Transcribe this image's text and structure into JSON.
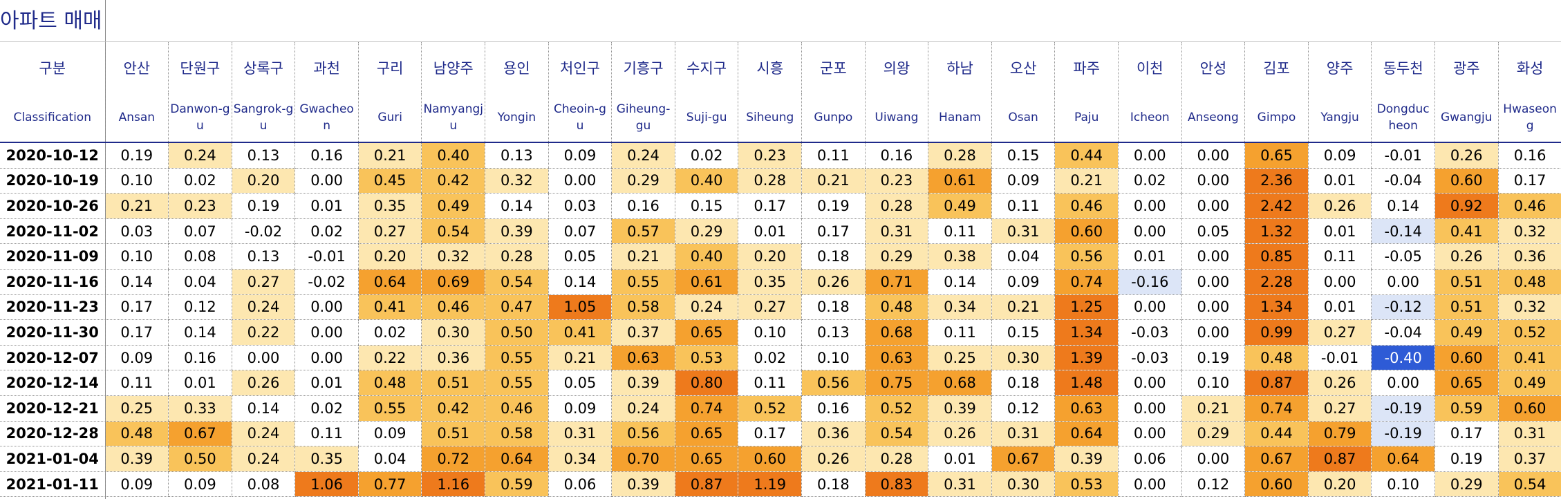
{
  "title": "아파트 매매",
  "header": {
    "col0_kor": "구분",
    "col0_eng": "Classification"
  },
  "regions": [
    {
      "kor": "안산",
      "eng": "Ansan"
    },
    {
      "kor": "단원구",
      "eng": "Danwon-gu"
    },
    {
      "kor": "상록구",
      "eng": "Sangrok-gu"
    },
    {
      "kor": "과천",
      "eng": "Gwacheon"
    },
    {
      "kor": "구리",
      "eng": "Guri"
    },
    {
      "kor": "남양주",
      "eng": "Namyangju"
    },
    {
      "kor": "용인",
      "eng": "Yongin"
    },
    {
      "kor": "처인구",
      "eng": "Cheoin-gu"
    },
    {
      "kor": "기흥구",
      "eng": "Giheung-gu"
    },
    {
      "kor": "수지구",
      "eng": "Suji-gu"
    },
    {
      "kor": "시흥",
      "eng": "Siheung"
    },
    {
      "kor": "군포",
      "eng": "Gunpo"
    },
    {
      "kor": "의왕",
      "eng": "Uiwang"
    },
    {
      "kor": "하남",
      "eng": "Hanam"
    },
    {
      "kor": "오산",
      "eng": "Osan"
    },
    {
      "kor": "파주",
      "eng": "Paju"
    },
    {
      "kor": "이천",
      "eng": "Icheon"
    },
    {
      "kor": "안성",
      "eng": "Anseong"
    },
    {
      "kor": "김포",
      "eng": "Gimpo"
    },
    {
      "kor": "양주",
      "eng": "Yangju"
    },
    {
      "kor": "동두천",
      "eng": "Dongducheon"
    },
    {
      "kor": "광주",
      "eng": "Gwangju"
    },
    {
      "kor": "화성",
      "eng": "Hwaseong"
    }
  ],
  "rows": [
    {
      "date": "2020-10-12",
      "values": [
        "0.19",
        "0.24",
        "0.13",
        "0.16",
        "0.21",
        "0.40",
        "0.13",
        "0.09",
        "0.24",
        "0.02",
        "0.23",
        "0.11",
        "0.16",
        "0.28",
        "0.15",
        "0.44",
        "0.00",
        "0.00",
        "0.65",
        "0.09",
        "-0.01",
        "0.26",
        "0.16"
      ]
    },
    {
      "date": "2020-10-19",
      "values": [
        "0.10",
        "0.02",
        "0.20",
        "0.00",
        "0.45",
        "0.42",
        "0.32",
        "0.00",
        "0.29",
        "0.40",
        "0.28",
        "0.21",
        "0.23",
        "0.61",
        "0.09",
        "0.21",
        "0.02",
        "0.00",
        "2.36",
        "0.01",
        "-0.04",
        "0.60",
        "0.17"
      ]
    },
    {
      "date": "2020-10-26",
      "values": [
        "0.21",
        "0.23",
        "0.19",
        "0.01",
        "0.35",
        "0.49",
        "0.14",
        "0.03",
        "0.16",
        "0.15",
        "0.17",
        "0.19",
        "0.28",
        "0.49",
        "0.11",
        "0.46",
        "0.00",
        "0.00",
        "2.42",
        "0.26",
        "0.14",
        "0.92",
        "0.46"
      ]
    },
    {
      "date": "2020-11-02",
      "values": [
        "0.03",
        "0.07",
        "-0.02",
        "0.02",
        "0.27",
        "0.54",
        "0.39",
        "0.07",
        "0.57",
        "0.29",
        "0.01",
        "0.17",
        "0.31",
        "0.11",
        "0.31",
        "0.60",
        "0.00",
        "0.05",
        "1.32",
        "0.01",
        "-0.14",
        "0.41",
        "0.32"
      ]
    },
    {
      "date": "2020-11-09",
      "values": [
        "0.10",
        "0.08",
        "0.13",
        "-0.01",
        "0.20",
        "0.32",
        "0.28",
        "0.05",
        "0.21",
        "0.40",
        "0.20",
        "0.18",
        "0.29",
        "0.38",
        "0.04",
        "0.56",
        "0.01",
        "0.00",
        "0.85",
        "0.11",
        "-0.05",
        "0.26",
        "0.36"
      ]
    },
    {
      "date": "2020-11-16",
      "values": [
        "0.14",
        "0.04",
        "0.27",
        "-0.02",
        "0.64",
        "0.69",
        "0.54",
        "0.14",
        "0.55",
        "0.61",
        "0.35",
        "0.26",
        "0.71",
        "0.14",
        "0.09",
        "0.74",
        "-0.16",
        "0.00",
        "2.28",
        "0.00",
        "0.00",
        "0.51",
        "0.48"
      ]
    },
    {
      "date": "2020-11-23",
      "values": [
        "0.17",
        "0.12",
        "0.24",
        "0.00",
        "0.41",
        "0.46",
        "0.47",
        "1.05",
        "0.58",
        "0.24",
        "0.27",
        "0.18",
        "0.48",
        "0.34",
        "0.21",
        "1.25",
        "0.00",
        "0.00",
        "1.34",
        "0.01",
        "-0.12",
        "0.51",
        "0.32"
      ]
    },
    {
      "date": "2020-11-30",
      "values": [
        "0.17",
        "0.14",
        "0.22",
        "0.00",
        "0.02",
        "0.30",
        "0.50",
        "0.41",
        "0.37",
        "0.65",
        "0.10",
        "0.13",
        "0.68",
        "0.11",
        "0.15",
        "1.34",
        "-0.03",
        "0.00",
        "0.99",
        "0.27",
        "-0.04",
        "0.49",
        "0.52"
      ]
    },
    {
      "date": "2020-12-07",
      "values": [
        "0.09",
        "0.16",
        "0.00",
        "0.00",
        "0.22",
        "0.36",
        "0.55",
        "0.21",
        "0.63",
        "0.53",
        "0.02",
        "0.10",
        "0.63",
        "0.25",
        "0.30",
        "1.39",
        "-0.03",
        "0.19",
        "0.48",
        "-0.01",
        "-0.40",
        "0.60",
        "0.41"
      ]
    },
    {
      "date": "2020-12-14",
      "values": [
        "0.11",
        "0.01",
        "0.26",
        "0.01",
        "0.48",
        "0.51",
        "0.55",
        "0.05",
        "0.39",
        "0.80",
        "0.11",
        "0.56",
        "0.75",
        "0.68",
        "0.18",
        "1.48",
        "0.00",
        "0.10",
        "0.87",
        "0.26",
        "0.00",
        "0.65",
        "0.49"
      ]
    },
    {
      "date": "2020-12-21",
      "values": [
        "0.25",
        "0.33",
        "0.14",
        "0.02",
        "0.55",
        "0.42",
        "0.46",
        "0.09",
        "0.24",
        "0.74",
        "0.52",
        "0.16",
        "0.52",
        "0.39",
        "0.12",
        "0.63",
        "0.00",
        "0.21",
        "0.74",
        "0.27",
        "-0.19",
        "0.59",
        "0.60"
      ]
    },
    {
      "date": "2020-12-28",
      "values": [
        "0.48",
        "0.67",
        "0.24",
        "0.11",
        "0.09",
        "0.51",
        "0.58",
        "0.31",
        "0.56",
        "0.65",
        "0.17",
        "0.36",
        "0.54",
        "0.26",
        "0.31",
        "0.64",
        "0.00",
        "0.29",
        "0.44",
        "0.79",
        "-0.19",
        "0.17",
        "0.31"
      ]
    },
    {
      "date": "2021-01-04",
      "values": [
        "0.39",
        "0.50",
        "0.24",
        "0.35",
        "0.04",
        "0.72",
        "0.64",
        "0.34",
        "0.70",
        "0.65",
        "0.60",
        "0.26",
        "0.28",
        "0.01",
        "0.67",
        "0.39",
        "0.06",
        "0.00",
        "0.67",
        "0.87",
        "0.64",
        "0.19",
        "0.37"
      ]
    },
    {
      "date": "2021-01-11",
      "values": [
        "0.09",
        "0.09",
        "0.08",
        "1.06",
        "0.77",
        "1.16",
        "0.59",
        "0.06",
        "0.39",
        "0.87",
        "1.19",
        "0.18",
        "0.83",
        "0.31",
        "0.30",
        "0.53",
        "0.00",
        "0.12",
        "0.60",
        "0.20",
        "0.10",
        "0.29",
        "0.54"
      ]
    }
  ],
  "colors": {
    "header_text": "#1f2a8a",
    "neg_light": "#dce5f7",
    "neg_strong": "#2e5bd6",
    "pos_light": "#fde7b0",
    "pos_mid": "#f9c35a",
    "pos_orange": "#f5a12f",
    "pos_deep": "#ee7a1c"
  }
}
